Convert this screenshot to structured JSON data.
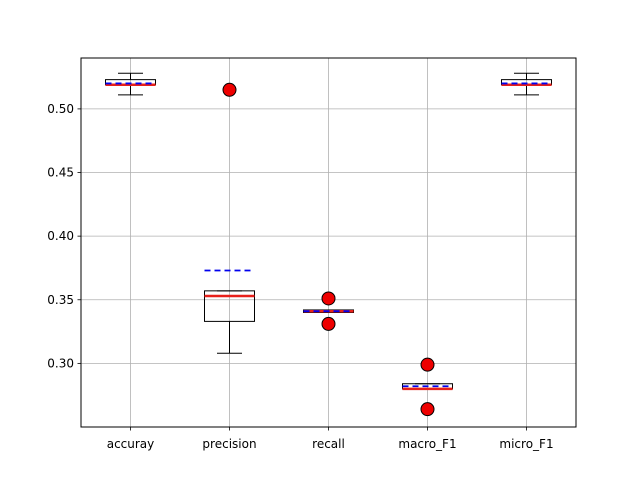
{
  "chart_data": {
    "type": "box",
    "title": "",
    "xlabel": "",
    "ylabel": "",
    "ylim": [
      0.25,
      0.54
    ],
    "yticks": [
      0.3,
      0.35,
      0.4,
      0.45,
      0.5
    ],
    "ytick_labels": [
      "0.30",
      "0.35",
      "0.40",
      "0.45",
      "0.50"
    ],
    "grid": true,
    "median_color": "#e8201a",
    "mean_color": "#0000ee",
    "flier_color": "#ee0000",
    "categories": [
      "accuray",
      "precision",
      "recall",
      "macro_F1",
      "micro_F1"
    ],
    "boxes": [
      {
        "label": "accuray",
        "whisker_low": 0.511,
        "q1": 0.519,
        "median": 0.519,
        "q3": 0.523,
        "whisker_high": 0.528,
        "mean": 0.52,
        "fliers": []
      },
      {
        "label": "precision",
        "whisker_low": 0.308,
        "q1": 0.333,
        "median": 0.353,
        "q3": 0.357,
        "whisker_high": 0.357,
        "mean": 0.373,
        "fliers": [
          0.515
        ]
      },
      {
        "label": "recall",
        "whisker_low": 0.34,
        "q1": 0.34,
        "median": 0.341,
        "q3": 0.342,
        "whisker_high": 0.342,
        "mean": 0.341,
        "fliers": [
          0.351,
          0.331
        ]
      },
      {
        "label": "macro_F1",
        "whisker_low": 0.28,
        "q1": 0.28,
        "median": 0.28,
        "q3": 0.284,
        "whisker_high": 0.284,
        "mean": 0.282,
        "fliers": [
          0.299,
          0.264
        ]
      },
      {
        "label": "micro_F1",
        "whisker_low": 0.511,
        "q1": 0.519,
        "median": 0.519,
        "q3": 0.523,
        "whisker_high": 0.528,
        "mean": 0.52,
        "fliers": []
      }
    ]
  }
}
